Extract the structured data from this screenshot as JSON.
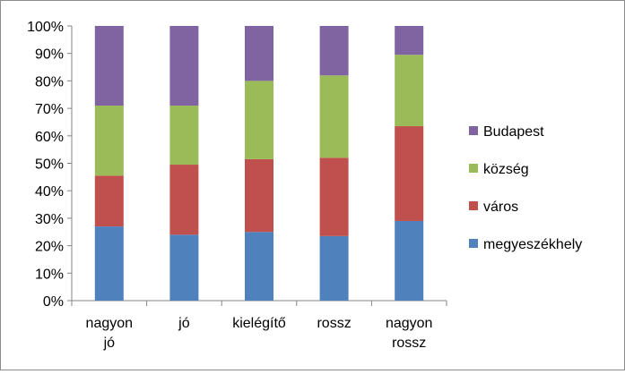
{
  "chart_data": {
    "type": "bar",
    "stacked": true,
    "percent_stacked": true,
    "categories": [
      [
        "nagyon",
        "jó"
      ],
      [
        "jó"
      ],
      [
        "kielégítő"
      ],
      [
        "rossz"
      ],
      [
        "nagyon",
        "rossz"
      ]
    ],
    "series": [
      {
        "name": "megyeszékhely",
        "color": "#4f81bd",
        "values": [
          27,
          24,
          25,
          23.5,
          29
        ]
      },
      {
        "name": "város",
        "color": "#c0504d",
        "values": [
          18.5,
          25.5,
          26.5,
          28.5,
          34.5
        ]
      },
      {
        "name": "község",
        "color": "#9bbb59",
        "values": [
          25.5,
          21.5,
          28.5,
          30,
          26
        ]
      },
      {
        "name": "Budapest",
        "color": "#8064a2",
        "values": [
          29,
          29,
          20,
          18,
          10.5
        ]
      }
    ],
    "legend_order": [
      "Budapest",
      "község",
      "város",
      "megyeszékhely"
    ],
    "y_ticks": [
      "0%",
      "10%",
      "20%",
      "30%",
      "40%",
      "50%",
      "60%",
      "70%",
      "80%",
      "90%",
      "100%"
    ],
    "ylim": [
      0,
      100
    ],
    "legend_position": "right",
    "grid": false
  }
}
